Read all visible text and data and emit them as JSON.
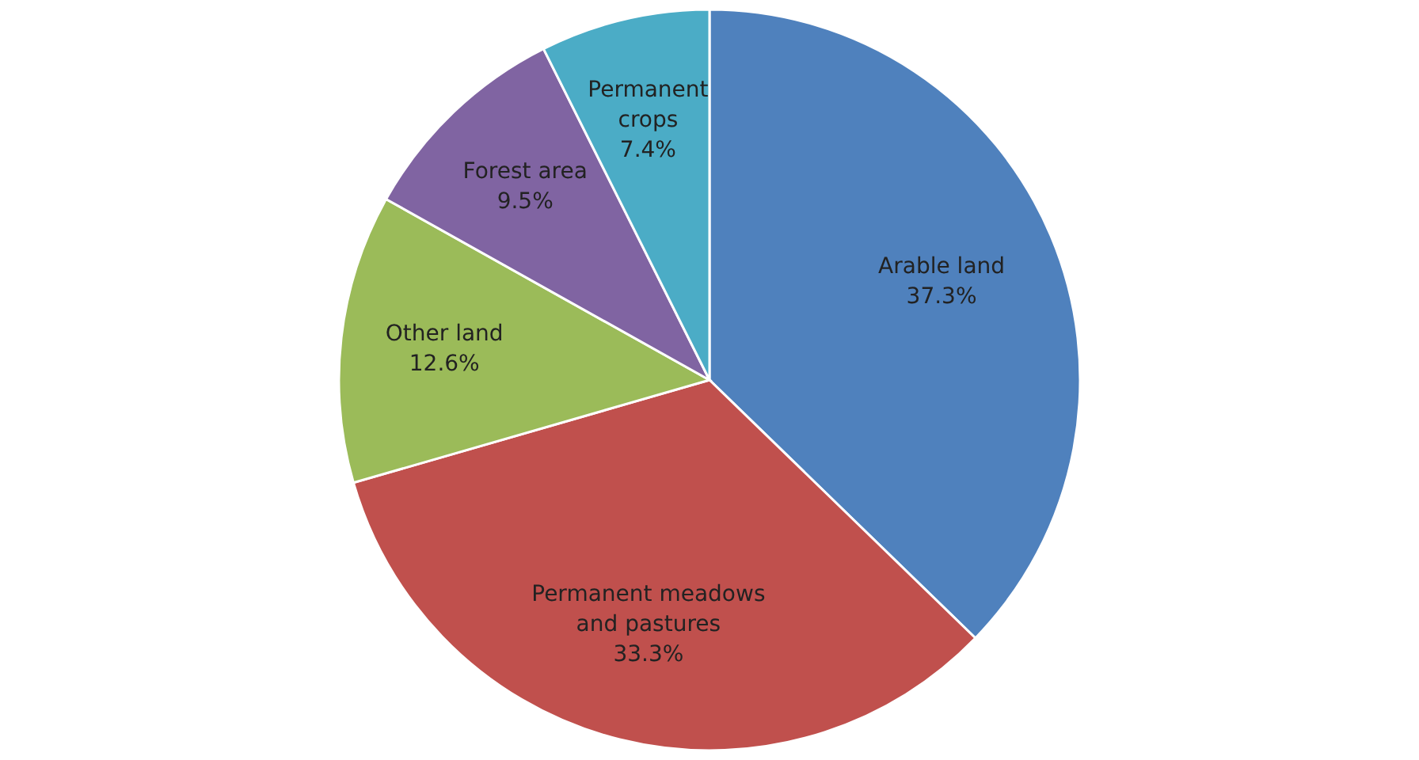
{
  "chart_data": {
    "type": "pie",
    "categories": [
      "Arable land",
      "Permanent meadows and pastures",
      "Other land",
      "Forest area",
      "Permanent crops"
    ],
    "values": [
      37.3,
      33.3,
      12.6,
      9.5,
      7.4
    ],
    "value_labels": [
      "37.3%",
      "33.3%",
      "12.6%",
      "9.5%",
      "7.4%"
    ],
    "colors": [
      "#4f81bd",
      "#c0504d",
      "#9bbb59",
      "#8064a2",
      "#4bacc6"
    ]
  }
}
